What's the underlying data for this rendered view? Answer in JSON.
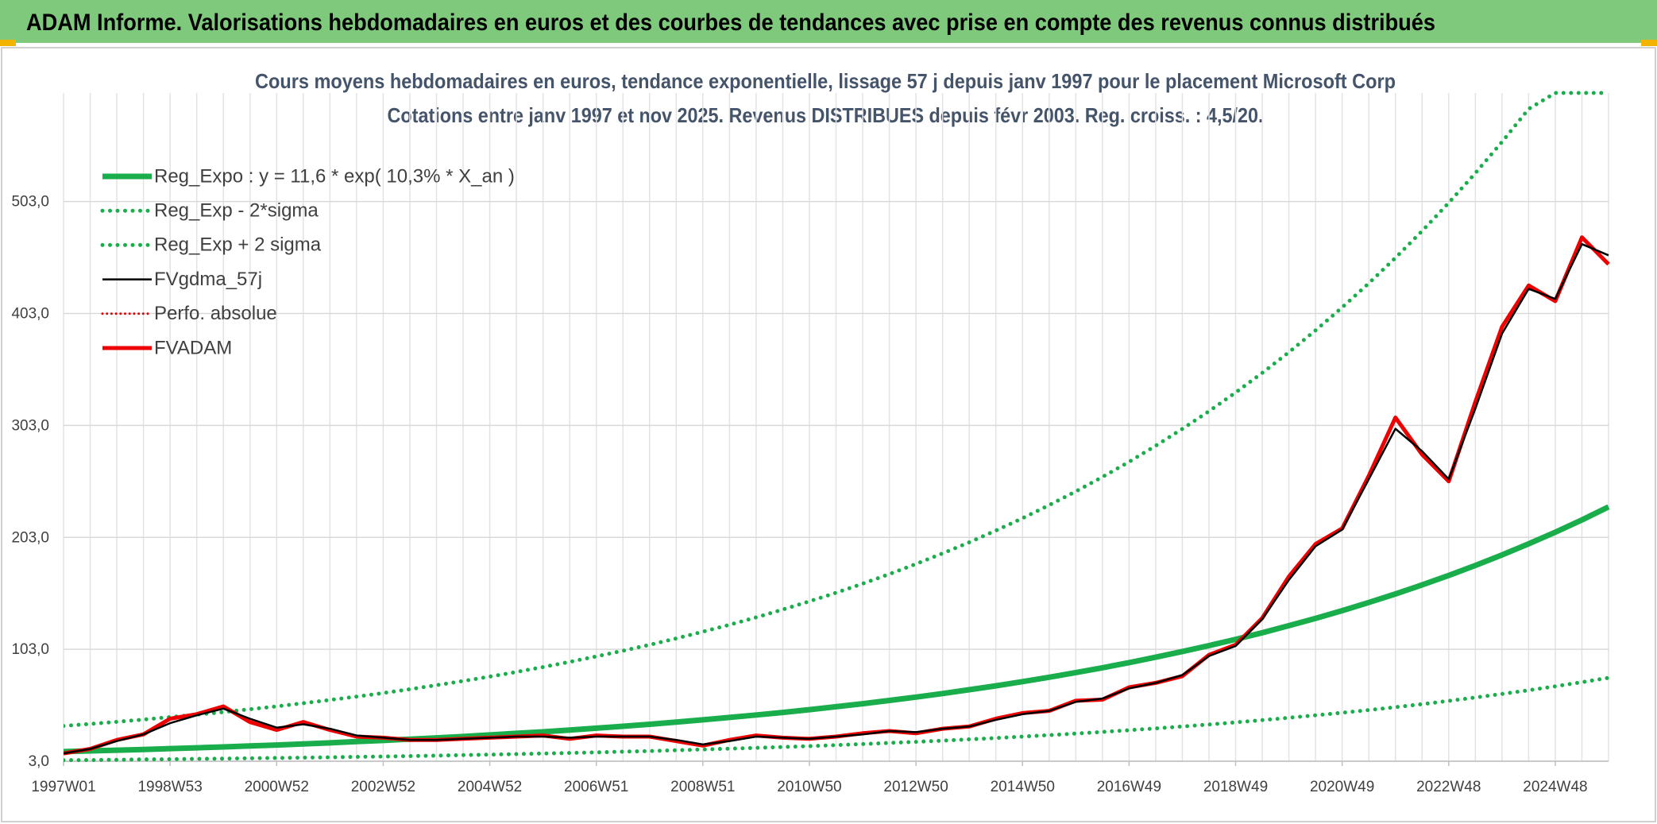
{
  "header": {
    "title": "ADAM Informe. Valorisations hebdomadaires en euros et des courbes de tendances avec prise en compte des revenus connus distribués"
  },
  "chart_data": {
    "type": "line",
    "title": "Cours moyens hebdomadaires en euros, tendance exponentielle, lissage 57 j depuis janv 1997 pour le placement Microsoft Corp",
    "subtitle": "Cotations entre janv 1997 et nov 2025. Revenus DISTRIBUES depuis févr 2003. Reg. croiss. : 4,5/20.",
    "categories": [
      "1997W01",
      null,
      null,
      null,
      "1998W53",
      null,
      null,
      null,
      "2000W52",
      null,
      null,
      null,
      "2002W52",
      null,
      null,
      null,
      "2004W52",
      null,
      null,
      null,
      "2006W51",
      null,
      null,
      null,
      "2008W51",
      null,
      null,
      null,
      "2010W50",
      null,
      null,
      null,
      "2012W50",
      null,
      null,
      null,
      "2014W50",
      null,
      null,
      null,
      "2016W49",
      null,
      null,
      null,
      "2018W49",
      null,
      null,
      null,
      "2020W49",
      null,
      null,
      null,
      "2022W48",
      null,
      null,
      null,
      "2024W48",
      null,
      null
    ],
    "ylim": [
      3,
      600
    ],
    "yticks": [
      {
        "value": 3,
        "label": "3,0"
      },
      {
        "value": 103,
        "label": "103,0"
      },
      {
        "value": 203,
        "label": "203,0"
      },
      {
        "value": 303,
        "label": "303,0"
      },
      {
        "value": 403,
        "label": "403,0"
      },
      {
        "value": 503,
        "label": "503,0"
      }
    ],
    "grid": true,
    "legend": "top-left",
    "series": [
      {
        "name": "Reg_Expo : y = 11,6 * exp( 10,3% *  X_an )",
        "color": "#1aad4b",
        "style": "solid",
        "width": 7,
        "values": [
          11.6,
          12.2,
          12.9,
          13.5,
          14.3,
          15.0,
          15.8,
          16.6,
          17.5,
          18.5,
          19.4,
          20.5,
          21.5,
          22.7,
          23.9,
          25.1,
          26.5,
          27.9,
          29.3,
          30.9,
          32.5,
          34.2,
          36.0,
          37.9,
          40.0,
          42.1,
          44.3,
          46.6,
          49.1,
          51.7,
          54.4,
          57.3,
          60.3,
          63.5,
          66.9,
          70.4,
          74.1,
          78.0,
          82.2,
          86.5,
          91.1,
          95.9,
          101.0,
          106.3,
          111.9,
          117.8,
          124.1,
          130.6,
          137.5,
          144.8,
          152.4,
          160.5,
          169.0,
          177.9,
          187.3,
          197.2,
          207.6,
          218.6,
          230.2
        ]
      },
      {
        "name": "Reg_Exp - 2*sigma",
        "color": "#1aad4b",
        "style": "dotted",
        "width": 5,
        "values": [
          3.9,
          4.1,
          4.3,
          4.6,
          4.8,
          5.1,
          5.3,
          5.6,
          5.9,
          6.2,
          6.5,
          6.9,
          7.2,
          7.6,
          8.0,
          8.5,
          8.9,
          9.4,
          9.9,
          10.4,
          10.9,
          11.5,
          12.1,
          12.8,
          13.5,
          14.2,
          14.9,
          15.7,
          16.5,
          17.4,
          18.3,
          19.3,
          20.3,
          21.4,
          22.5,
          23.7,
          25.0,
          26.3,
          27.7,
          29.1,
          30.7,
          32.3,
          34.0,
          35.8,
          37.7,
          39.7,
          41.8,
          44.0,
          46.3,
          48.7,
          51.3,
          54.0,
          56.9,
          59.9,
          63.1,
          66.4,
          69.9,
          73.6,
          77.5
        ]
      },
      {
        "name": "Reg_Exp + 2 sigma",
        "color": "#1aad4b",
        "style": "dotted",
        "width": 5,
        "values": [
          34.5,
          36.3,
          38.2,
          40.2,
          42.4,
          44.6,
          46.9,
          49.4,
          52.0,
          54.8,
          57.7,
          60.7,
          63.9,
          67.3,
          70.9,
          74.6,
          78.6,
          82.7,
          87.1,
          91.7,
          96.6,
          101.7,
          107.0,
          112.7,
          118.7,
          124.9,
          131.5,
          138.5,
          145.8,
          153.5,
          161.6,
          170.2,
          179.2,
          188.6,
          198.6,
          209.1,
          220.1,
          231.8,
          244.0,
          256.9,
          270.5,
          284.8,
          299.9,
          315.7,
          332.4,
          349.9,
          368.4,
          387.9,
          408.4,
          430.0,
          452.7,
          476.7,
          501.8,
          528.4,
          556.3,
          585.7,
          600,
          600,
          600
        ]
      },
      {
        "name": "FVgdma_57j",
        "color": "#000000",
        "style": "solid",
        "width": 2.5,
        "values": [
          10,
          14,
          21,
          27,
          37,
          44,
          50,
          41,
          33,
          36,
          32,
          26,
          24,
          22,
          22,
          23,
          24,
          25,
          25,
          24,
          25,
          25,
          25,
          22,
          18,
          21,
          25,
          24,
          23,
          25,
          27,
          30,
          29,
          32,
          34,
          40,
          45,
          48,
          56,
          59,
          68,
          73,
          80,
          97,
          106,
          130,
          165,
          195,
          210,
          255,
          300,
          280,
          255,
          318,
          385,
          425,
          416,
          465,
          455
        ]
      },
      {
        "name": "Perfo. absolue",
        "color": "#e00000",
        "style": "dotted",
        "width": 3,
        "values": [
          null,
          null,
          null,
          null,
          null,
          null,
          null,
          null,
          null,
          null,
          null,
          null,
          null,
          null,
          null,
          null,
          null,
          null,
          null,
          null,
          null,
          null,
          null,
          null,
          null,
          null,
          null,
          null,
          null,
          null,
          null,
          null,
          null,
          null,
          null,
          null,
          null,
          null,
          null,
          null,
          null,
          null,
          null,
          null,
          null,
          null,
          null,
          null,
          null,
          null,
          null,
          null,
          null,
          null,
          null,
          null,
          null,
          null,
          null
        ]
      },
      {
        "name": "FVADAM",
        "color": "#ee0000",
        "style": "solid",
        "width": 5,
        "values": [
          10,
          14,
          22,
          27,
          41,
          45,
          52,
          38,
          31,
          38,
          31,
          25,
          24,
          22,
          22,
          23,
          24,
          25,
          26,
          23,
          26,
          25,
          25,
          21,
          17,
          22,
          26,
          24,
          23,
          25,
          28,
          30,
          28,
          32,
          34,
          41,
          46,
          48,
          57,
          58,
          69,
          73,
          79,
          98,
          107,
          131,
          168,
          197,
          211,
          258,
          310,
          277,
          253,
          324,
          391,
          428,
          414,
          471,
          447
        ]
      }
    ]
  }
}
